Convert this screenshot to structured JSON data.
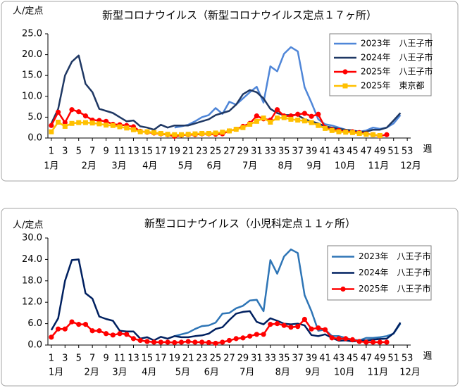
{
  "chart_data": [
    {
      "type": "line",
      "title": "新型コロナウイルス（新型コロナウイルス定点１７ヶ所）",
      "ylabel": "人/定点",
      "xlabel": "週",
      "x": [
        1,
        2,
        3,
        4,
        5,
        6,
        7,
        8,
        9,
        10,
        11,
        12,
        13,
        14,
        15,
        16,
        17,
        18,
        19,
        20,
        21,
        22,
        23,
        24,
        25,
        26,
        27,
        28,
        29,
        30,
        31,
        32,
        33,
        34,
        35,
        36,
        37,
        38,
        39,
        40,
        41,
        42,
        43,
        44,
        45,
        46,
        47,
        48,
        49,
        50,
        51,
        52,
        53
      ],
      "xlim": [
        0.5,
        53.5
      ],
      "xticks": [
        1,
        3,
        5,
        7,
        9,
        11,
        13,
        15,
        17,
        19,
        21,
        23,
        25,
        27,
        29,
        31,
        33,
        35,
        37,
        39,
        41,
        43,
        45,
        47,
        49,
        51,
        53
      ],
      "month_labels": [
        {
          "value": 1,
          "label": "1月"
        },
        {
          "value": 6.5,
          "label": "2月"
        },
        {
          "value": 10.9,
          "label": "3月"
        },
        {
          "value": 15.4,
          "label": "4月"
        },
        {
          "value": 20.6,
          "label": "5月"
        },
        {
          "value": 24.8,
          "label": "6月"
        },
        {
          "value": 30,
          "label": "7月"
        },
        {
          "value": 35.2,
          "label": "8月"
        },
        {
          "value": 39.4,
          "label": "9月"
        },
        {
          "value": 43.9,
          "label": "10月"
        },
        {
          "value": 48.8,
          "label": "11月"
        },
        {
          "value": 53.5,
          "label": "12月"
        }
      ],
      "ylim": [
        0,
        25
      ],
      "yticks": [
        {
          "value": 0,
          "label": "0.0"
        },
        {
          "value": 5,
          "label": "5.0"
        },
        {
          "value": 10,
          "label": "10.0"
        },
        {
          "value": 15,
          "label": "15.0"
        },
        {
          "value": 20,
          "label": "20.0"
        },
        {
          "value": 25,
          "label": "25.0"
        }
      ],
      "grid": false,
      "legend": "upper right",
      "series": [
        {
          "name": "2023年　八王子市",
          "color": "#4f86d8",
          "marker": "none",
          "values": [
            null,
            null,
            null,
            null,
            null,
            null,
            null,
            null,
            null,
            null,
            null,
            null,
            null,
            null,
            null,
            null,
            null,
            null,
            2.5,
            2.8,
            3.2,
            4,
            5,
            5.5,
            7.2,
            5.8,
            8.7,
            8,
            9.5,
            11,
            12.3,
            8.5,
            17.2,
            16,
            20.2,
            21.8,
            20.8,
            12.2,
            8.5,
            4.5,
            3.3,
            3,
            2.5,
            2,
            1.8,
            1.5,
            1.8,
            2.5,
            2.2,
            2.5,
            3.5,
            5.5,
            null
          ]
        },
        {
          "name": "2024年　八王子市",
          "color": "#1f3864",
          "marker": "none",
          "values": [
            3.5,
            7,
            15,
            18.3,
            19.8,
            13,
            11,
            7,
            6.5,
            6,
            5,
            4,
            4.2,
            2.8,
            2.5,
            2,
            3.2,
            2.5,
            3,
            3,
            3,
            3.5,
            4,
            4.5,
            5.5,
            6,
            6.5,
            8,
            10.5,
            11.5,
            11,
            9.5,
            7,
            6,
            5.5,
            5.5,
            5.5,
            4.5,
            4,
            3.5,
            2.8,
            2.5,
            2.2,
            2,
            1.8,
            1.5,
            1.5,
            2,
            2,
            2.5,
            4.2,
            6,
            null
          ]
        },
        {
          "name": "2025年　八王子市",
          "color": "#ff0000",
          "marker": "circle",
          "values": [
            3,
            6.2,
            3.7,
            6.8,
            6.3,
            5.3,
            4.3,
            4.2,
            4,
            3.3,
            3.2,
            3,
            2.7,
            1.6,
            1.4,
            1.2,
            1,
            0.8,
            0.4,
            0.7,
            0.8,
            0.8,
            1,
            1,
            0.9,
            1,
            1.7,
            2.1,
            2.8,
            3.5,
            5.3,
            4.6,
            4.3,
            6.8,
            5.3,
            5.3,
            5.7,
            5.9,
            5.2,
            5.7,
            2.5,
            2,
            1.8,
            1.5,
            1.5,
            1.3,
            1,
            0.8,
            0.5,
            0.8,
            null,
            null,
            null
          ]
        },
        {
          "name": "2025年　東京都",
          "color": "#ffc000",
          "marker": "square",
          "values": [
            1.5,
            3.8,
            2.8,
            3.5,
            3.7,
            3.7,
            3.6,
            3.4,
            3.1,
            3,
            2.7,
            2.4,
            2,
            1.5,
            1.5,
            1.3,
            1.1,
            0.9,
            0.8,
            0.8,
            0.9,
            1,
            1.1,
            1.1,
            1.2,
            1.4,
            1.7,
            2.1,
            2.5,
            3.3,
            4,
            4.8,
            3.8,
            4.8,
            4.9,
            4.5,
            4.3,
            4.1,
            3.7,
            3,
            2.3,
            1.8,
            1.5,
            1.4,
            1.3,
            1.1,
            0.9,
            0.8,
            0.6,
            null,
            null,
            null,
            null
          ]
        }
      ]
    },
    {
      "type": "line",
      "title": "新型コロナウイルス（小児科定点１１ヶ所）",
      "ylabel": "人/定点",
      "xlabel": "週",
      "x": [
        1,
        2,
        3,
        4,
        5,
        6,
        7,
        8,
        9,
        10,
        11,
        12,
        13,
        14,
        15,
        16,
        17,
        18,
        19,
        20,
        21,
        22,
        23,
        24,
        25,
        26,
        27,
        28,
        29,
        30,
        31,
        32,
        33,
        34,
        35,
        36,
        37,
        38,
        39,
        40,
        41,
        42,
        43,
        44,
        45,
        46,
        47,
        48,
        49,
        50,
        51,
        52,
        53
      ],
      "xlim": [
        0.5,
        53.5
      ],
      "xticks": [
        1,
        3,
        5,
        7,
        9,
        11,
        13,
        15,
        17,
        19,
        21,
        23,
        25,
        27,
        29,
        31,
        33,
        35,
        37,
        39,
        41,
        43,
        45,
        47,
        49,
        51,
        53
      ],
      "month_labels": [
        {
          "value": 1.7,
          "label": "1月"
        },
        {
          "value": 6.9,
          "label": "2月"
        },
        {
          "value": 11,
          "label": "3月"
        },
        {
          "value": 15.3,
          "label": "4月"
        },
        {
          "value": 20.2,
          "label": "5月"
        },
        {
          "value": 24.4,
          "label": "6月"
        },
        {
          "value": 29.6,
          "label": "7月"
        },
        {
          "value": 34.8,
          "label": "8月"
        },
        {
          "value": 39.2,
          "label": "9月"
        },
        {
          "value": 43.8,
          "label": "10月"
        },
        {
          "value": 48.7,
          "label": "11月"
        },
        {
          "value": 53.4,
          "label": "12月"
        }
      ],
      "ylim": [
        0,
        30
      ],
      "yticks": [
        {
          "value": 0,
          "label": "0.0"
        },
        {
          "value": 6,
          "label": "6.0"
        },
        {
          "value": 12,
          "label": "12.0"
        },
        {
          "value": 18,
          "label": "18.0"
        },
        {
          "value": 24,
          "label": "24.0"
        },
        {
          "value": 30,
          "label": "30.0"
        }
      ],
      "grid": false,
      "legend": "upper right",
      "series": [
        {
          "name": "2023年　八王子市",
          "color": "#2e75b6",
          "marker": "none",
          "values": [
            null,
            null,
            null,
            null,
            null,
            null,
            null,
            null,
            null,
            null,
            null,
            null,
            null,
            null,
            null,
            null,
            null,
            null,
            2.5,
            3,
            3.5,
            4.5,
            5.3,
            5.5,
            6.3,
            8.8,
            9,
            10.3,
            11,
            12.5,
            12.7,
            9.5,
            23.8,
            20,
            24.8,
            26.8,
            25.8,
            14,
            9.5,
            4,
            4.3,
            2.5,
            2.5,
            2,
            1.5,
            1.3,
            2,
            2,
            2.2,
            2.5,
            3.2,
            6,
            null
          ]
        },
        {
          "name": "2024年　八王子市",
          "color": "#002060",
          "marker": "none",
          "values": [
            4.2,
            7.5,
            18,
            23.8,
            24,
            14.5,
            13,
            8,
            7.3,
            6.8,
            4,
            3.8,
            3.8,
            1.8,
            2.2,
            1.3,
            2.3,
            1.8,
            2.5,
            2.2,
            2.2,
            2.5,
            2.7,
            3.2,
            4.5,
            5,
            7,
            8.8,
            9.3,
            9.5,
            6.5,
            5.8,
            7.5,
            6.8,
            6,
            5.8,
            6,
            5.5,
            2.8,
            2.5,
            3,
            2,
            1.2,
            1.3,
            1,
            1.2,
            1.3,
            1.5,
            1.7,
            1.8,
            3.3,
            6.3,
            null
          ]
        },
        {
          "name": "2025年　八王子市",
          "color": "#ff0000",
          "marker": "circle",
          "values": [
            2.2,
            4.5,
            4.5,
            6.5,
            5.8,
            5.8,
            4,
            4,
            3.2,
            2.8,
            3.2,
            3,
            1.8,
            1.3,
            1,
            0.8,
            0.8,
            0.8,
            0.7,
            0.8,
            1,
            0.8,
            0.8,
            0.7,
            0.5,
            0.8,
            1.3,
            1.8,
            2,
            2.5,
            3,
            3,
            5.8,
            6,
            5.5,
            5,
            5.2,
            7.2,
            4.5,
            4.8,
            4.3,
            2,
            1.8,
            1.8,
            1.5,
            1,
            0.8,
            0.8,
            0.8,
            0.8,
            null,
            null,
            null
          ]
        }
      ]
    }
  ]
}
